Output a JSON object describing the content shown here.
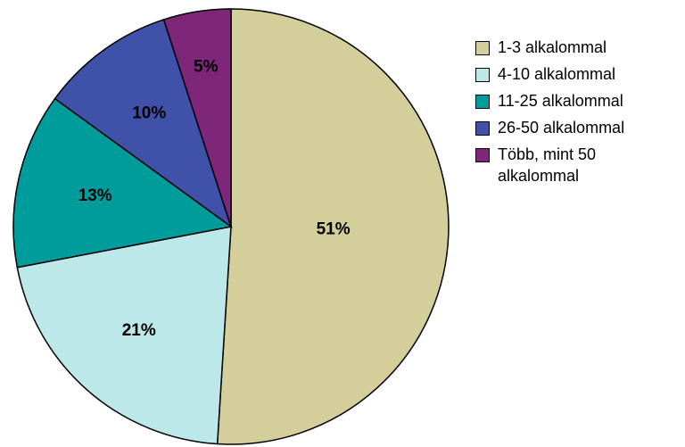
{
  "chart_data": {
    "type": "pie",
    "slices": [
      {
        "label": "1-3 alkalommal",
        "value": 51,
        "value_label": "51%",
        "color": "#D4CE9A"
      },
      {
        "label": "4-10 alkalommal",
        "value": 21,
        "value_label": "21%",
        "color": "#BDE8E9"
      },
      {
        "label": "11-25 alkalommal",
        "value": 13,
        "value_label": "13%",
        "color": "#009B9B"
      },
      {
        "label": "26-50 alkalommal",
        "value": 10,
        "value_label": "10%",
        "color": "#3F51A8"
      },
      {
        "label": "Több, mint 50 alkalommal",
        "value": 5,
        "value_label": "5%",
        "color": "#7E277A"
      }
    ],
    "legend_position": "right"
  }
}
